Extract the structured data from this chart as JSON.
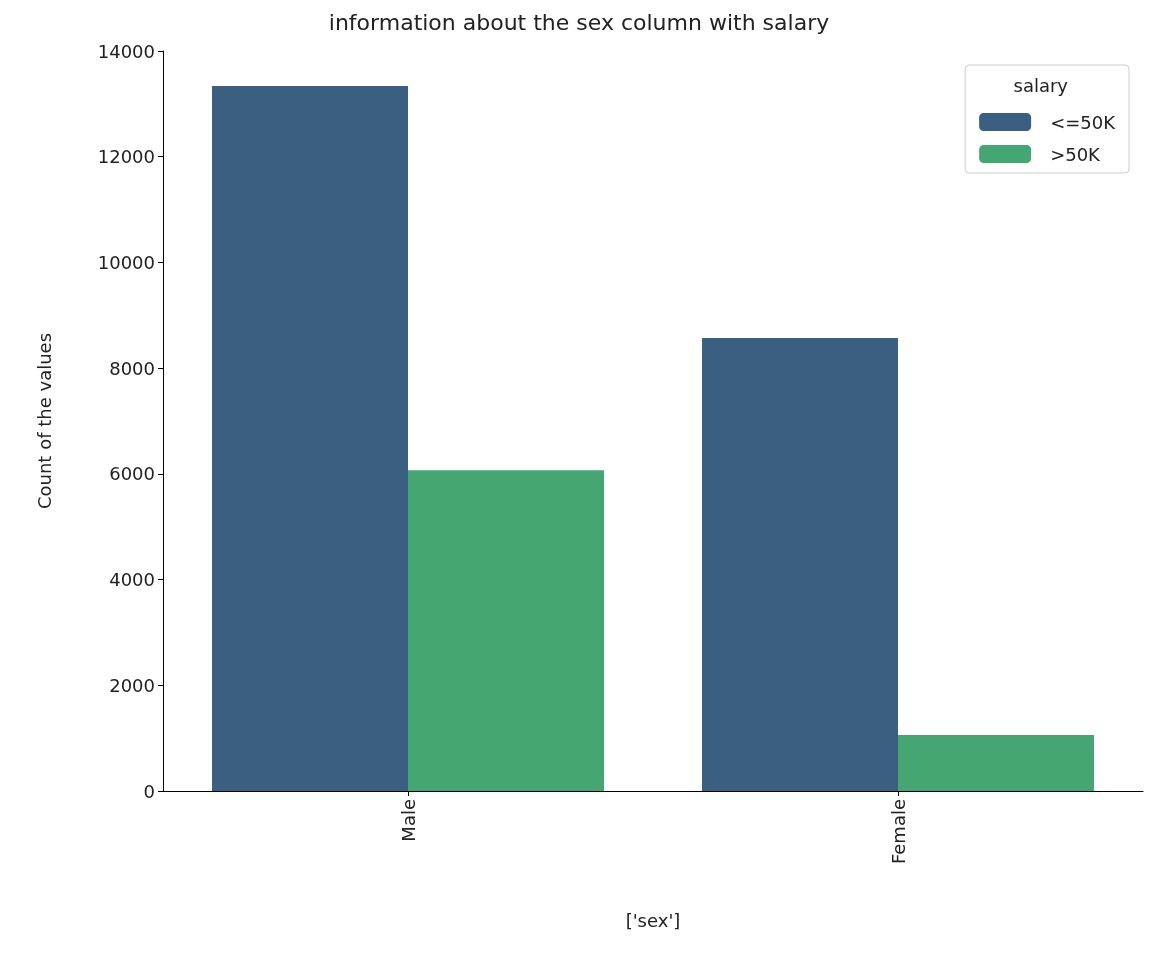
{
  "chart_data": {
    "type": "bar",
    "title": "information about the sex column with salary",
    "xlabel": "['sex']",
    "ylabel": "Count of the values",
    "legend_title": "salary",
    "categories": [
      "Male",
      "Female"
    ],
    "series": [
      {
        "name": "<=50K",
        "color": "#3b5f80",
        "values": [
          13340,
          8570
        ]
      },
      {
        "name": ">50K",
        "color": "#45a674",
        "values": [
          6070,
          1060
        ]
      }
    ],
    "ylim": [
      0,
      14000
    ],
    "yticks": [
      0,
      2000,
      4000,
      6000,
      8000,
      10000,
      12000,
      14000
    ],
    "grid": false,
    "legend": "top right"
  }
}
